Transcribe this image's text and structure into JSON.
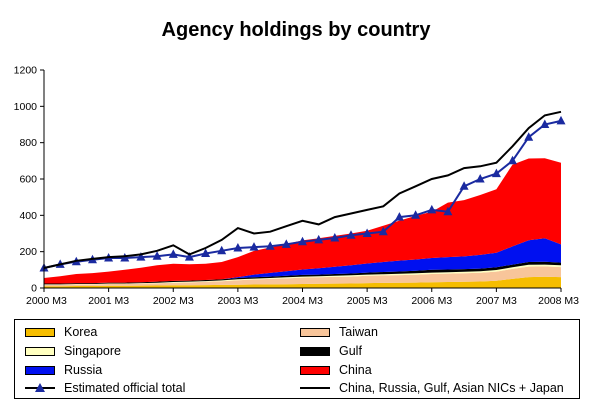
{
  "chart_data": {
    "type": "area",
    "title": "Agency holdings by country",
    "xlabel": "",
    "ylabel": "",
    "ylim": [
      0,
      1200
    ],
    "yticks": [
      0,
      200,
      400,
      600,
      800,
      1000,
      1200
    ],
    "x_labels": [
      "2000 M3",
      "2001 M3",
      "2002 M3",
      "2003 M3",
      "2004 M3",
      "2005 M3",
      "2006 M3",
      "2007 M3",
      "2008 M3"
    ],
    "x": [
      "2000 M3",
      "2000 M6",
      "2000 M9",
      "2000 M12",
      "2001 M3",
      "2001 M6",
      "2001 M9",
      "2001 M12",
      "2002 M3",
      "2002 M6",
      "2002 M9",
      "2002 M12",
      "2003 M3",
      "2003 M6",
      "2003 M9",
      "2003 M12",
      "2004 M3",
      "2004 M6",
      "2004 M9",
      "2004 M12",
      "2005 M3",
      "2005 M6",
      "2005 M9",
      "2005 M12",
      "2006 M3",
      "2006 M6",
      "2006 M9",
      "2006 M12",
      "2007 M3",
      "2007 M6",
      "2007 M9",
      "2007 M12",
      "2008 M3"
    ],
    "series": [
      {
        "name": "Korea",
        "color": "#f5bd00",
        "values": [
          10,
          10,
          11,
          11,
          12,
          12,
          13,
          14,
          15,
          15,
          16,
          17,
          18,
          19,
          20,
          21,
          22,
          23,
          24,
          25,
          27,
          28,
          29,
          30,
          32,
          33,
          34,
          36,
          40,
          50,
          60,
          62,
          60
        ]
      },
      {
        "name": "Taiwan",
        "color": "#f8c59a",
        "values": [
          8,
          8,
          9,
          9,
          10,
          10,
          11,
          12,
          14,
          16,
          18,
          20,
          25,
          28,
          30,
          32,
          35,
          36,
          37,
          38,
          40,
          41,
          42,
          43,
          45,
          46,
          47,
          48,
          50,
          55,
          58,
          57,
          55
        ]
      },
      {
        "name": "Singapore",
        "color": "#ffffc0",
        "values": [
          2,
          2,
          2,
          2,
          3,
          3,
          3,
          3,
          4,
          4,
          4,
          5,
          5,
          5,
          5,
          6,
          6,
          6,
          6,
          7,
          7,
          7,
          7,
          8,
          8,
          8,
          8,
          8,
          9,
          9,
          10,
          10,
          10
        ]
      },
      {
        "name": "Gulf",
        "color": "#000000",
        "values": [
          5,
          5,
          5,
          5,
          5,
          5,
          5,
          6,
          6,
          6,
          6,
          6,
          7,
          7,
          8,
          8,
          9,
          9,
          10,
          10,
          11,
          12,
          13,
          14,
          15,
          15,
          15,
          15,
          15,
          15,
          15,
          15,
          15
        ]
      },
      {
        "name": "Russia",
        "color": "#0010f0",
        "values": [
          0,
          0,
          0,
          0,
          0,
          0,
          0,
          0,
          0,
          0,
          0,
          0,
          5,
          15,
          20,
          25,
          30,
          35,
          40,
          45,
          50,
          55,
          60,
          62,
          65,
          68,
          70,
          75,
          80,
          100,
          120,
          130,
          100
        ]
      },
      {
        "name": "China",
        "color": "#ff0000",
        "values": [
          30,
          40,
          50,
          55,
          60,
          70,
          80,
          90,
          95,
          90,
          90,
          95,
          110,
          130,
          140,
          150,
          160,
          165,
          170,
          175,
          180,
          200,
          220,
          240,
          255,
          300,
          310,
          330,
          350,
          450,
          450,
          440,
          450
        ]
      }
    ],
    "lines": [
      {
        "name": "Estimated official total",
        "color": "#1a2aa0",
        "marker": "triangle",
        "values": [
          110,
          130,
          145,
          155,
          165,
          165,
          170,
          175,
          185,
          170,
          190,
          205,
          220,
          225,
          230,
          240,
          255,
          265,
          275,
          290,
          300,
          310,
          390,
          400,
          430,
          420,
          560,
          600,
          630,
          700,
          830,
          900,
          920
        ]
      },
      {
        "name": "China, Russia, Gulf, Asian NICs + Japan",
        "color": "#000000",
        "values": [
          110,
          130,
          150,
          160,
          170,
          175,
          185,
          205,
          235,
          185,
          220,
          265,
          330,
          300,
          310,
          340,
          370,
          350,
          390,
          410,
          430,
          450,
          520,
          560,
          600,
          620,
          660,
          670,
          690,
          780,
          880,
          950,
          970
        ]
      }
    ]
  },
  "legend": [
    {
      "label": "Korea",
      "kind": "box",
      "color": "#f5bd00"
    },
    {
      "label": "Taiwan",
      "kind": "box",
      "color": "#f8c59a"
    },
    {
      "label": "Singapore",
      "kind": "box",
      "color": "#ffffc0"
    },
    {
      "label": "Gulf",
      "kind": "box",
      "color": "#000000"
    },
    {
      "label": "Russia",
      "kind": "box",
      "color": "#0010f0"
    },
    {
      "label": "China",
      "kind": "box",
      "color": "#ff0000"
    },
    {
      "label": "Estimated official total",
      "kind": "marker-line",
      "color": "#1a2aa0"
    },
    {
      "label": "China, Russia, Gulf, Asian NICs + Japan",
      "kind": "line",
      "color": "#000000"
    }
  ]
}
